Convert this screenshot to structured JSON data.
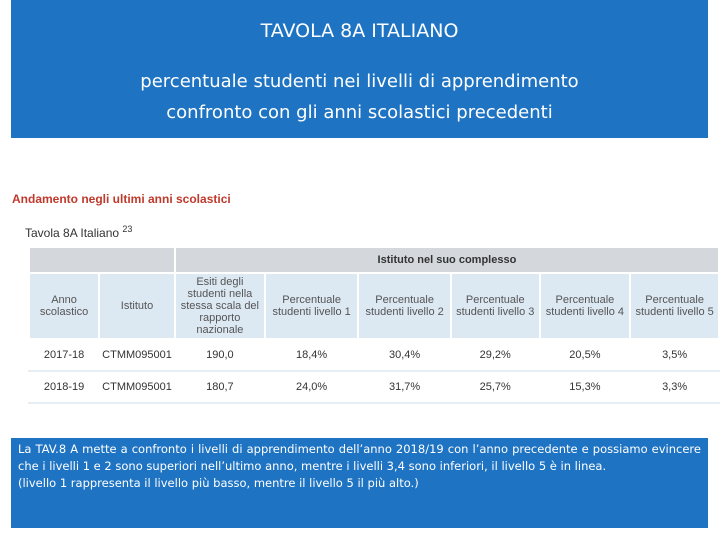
{
  "header": {
    "title": "TAVOLA 8A  ITALIANO",
    "subtitle_lines": [
      "percentuale studenti nei livelli di apprendimento",
      "confronto con gli anni scolastici precedenti"
    ]
  },
  "figure": {
    "section_title": "Andamento negli ultimi anni scolastici",
    "table_title": "Tavola 8A Italiano",
    "table_note": "23",
    "table": {
      "group_header": "Istituto nel suo complesso",
      "columns": [
        "Anno scolastico",
        "Istituto",
        "Esiti degli studenti nella stessa scala del rapporto nazionale",
        "Percentuale studenti livello 1",
        "Percentuale studenti livello 2",
        "Percentuale studenti livello 3",
        "Percentuale studenti livello 4",
        "Percentuale studenti livello 5"
      ],
      "rows": [
        [
          "2017-18",
          "CTMM095001",
          "190,0",
          "18,4%",
          "30,4%",
          "29,2%",
          "20,5%",
          "3,5%"
        ],
        [
          "2018-19",
          "CTMM095001",
          "180,7",
          "24,0%",
          "31,7%",
          "25,7%",
          "15,3%",
          "3,3%"
        ]
      ]
    }
  },
  "comment": {
    "paragraphs": [
      "La TAV.8 A mette a confronto i livelli di apprendimento dell’anno 2018/19 con l’anno precedente e possiamo evincere che i livelli 1 e 2 sono superiori nell’ultimo anno, mentre i livelli 3,4  sono inferiori, il livello 5 è in linea.",
      "(livello 1 rappresenta il livello più basso, mentre il livello 5 il più alto.)"
    ]
  }
}
